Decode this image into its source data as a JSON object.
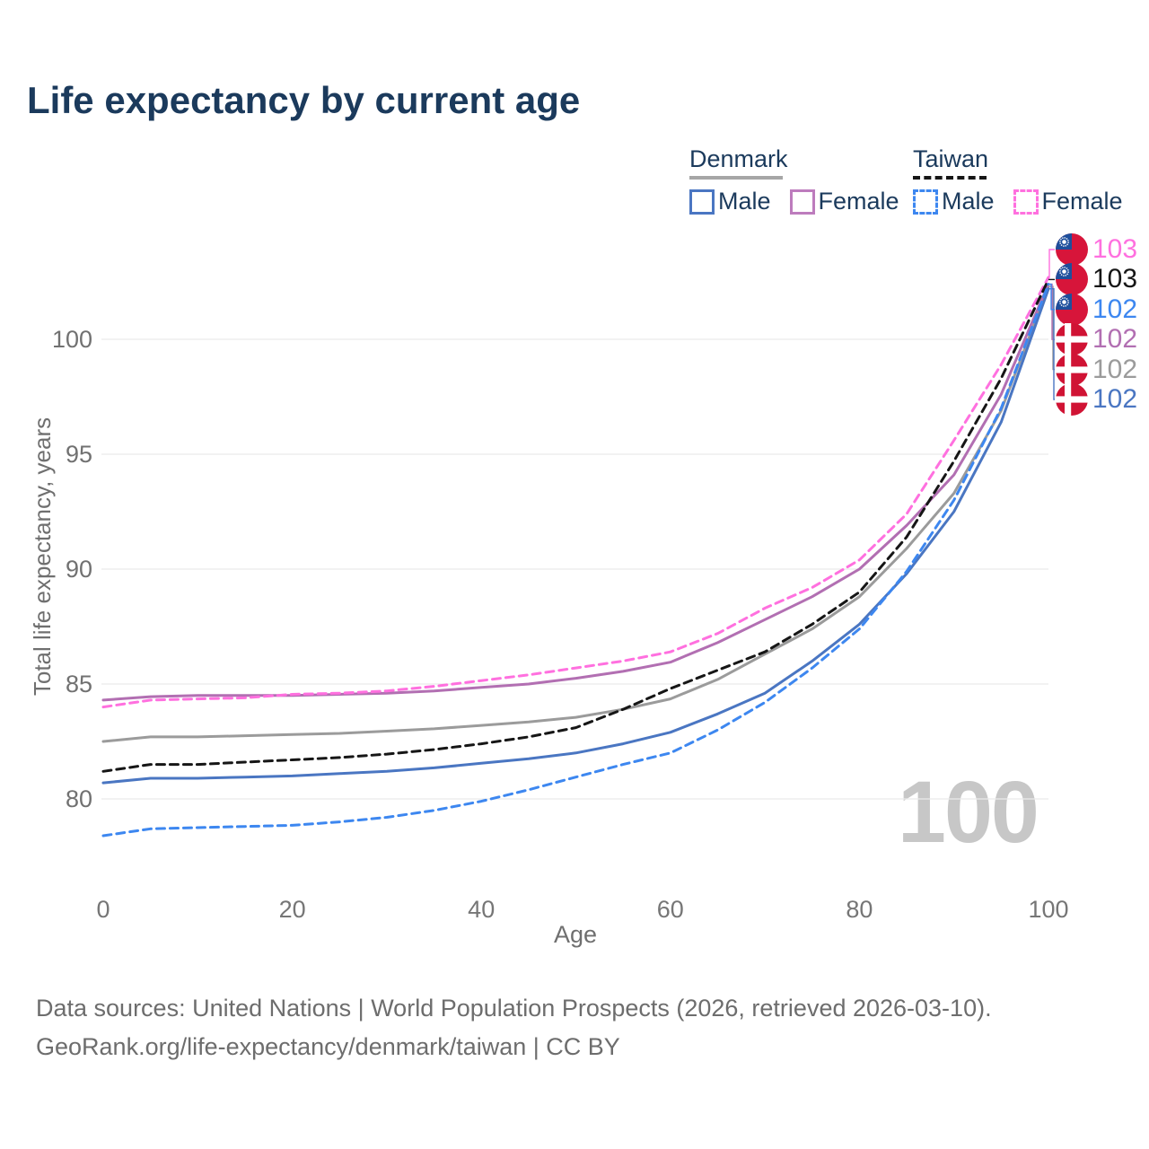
{
  "title": "Life expectancy by current age",
  "legend": {
    "groups": [
      {
        "label": "Denmark",
        "line_style": "solid",
        "underline_color": "#a6a6a6",
        "items": [
          {
            "label": "Male",
            "color": "#4a76c2",
            "dash": false
          },
          {
            "label": "Female",
            "color": "#bd7cbd",
            "dash": false
          }
        ]
      },
      {
        "label": "Taiwan",
        "line_style": "dashed",
        "underline_color": "#161616",
        "items": [
          {
            "label": "Male",
            "color": "#3d87f0",
            "dash": true
          },
          {
            "label": "Female",
            "color": "#ff70df",
            "dash": true
          }
        ]
      }
    ]
  },
  "watermark": "100",
  "footer": {
    "line1": "Data sources: United Nations | World Population Prospects (2026, retrieved 2026-03-10).",
    "line2": "GeoRank.org/life-expectancy/denmark/taiwan | CC BY"
  },
  "chart_data": {
    "type": "line",
    "title": "Life expectancy by current age",
    "xlabel": "Age",
    "ylabel": "Total life expectancy, years",
    "x_ticks": [
      0,
      20,
      40,
      60,
      80,
      100
    ],
    "y_ticks": [
      80,
      85,
      90,
      95,
      100
    ],
    "xlim": [
      0,
      100
    ],
    "ylim": [
      78,
      103.5
    ],
    "grid": true,
    "legend_position": "top-right",
    "x": [
      0,
      5,
      10,
      15,
      20,
      25,
      30,
      35,
      40,
      45,
      50,
      55,
      60,
      65,
      70,
      75,
      80,
      85,
      90,
      95,
      100
    ],
    "series": [
      {
        "name": "Denmark",
        "country": "Denmark",
        "color": "#9b9b9b",
        "dash": false,
        "label_row": 4,
        "end_label": "102",
        "values": [
          82.5,
          82.7,
          82.7,
          82.75,
          82.8,
          82.85,
          82.95,
          83.05,
          83.2,
          83.35,
          83.55,
          83.9,
          84.35,
          85.2,
          86.3,
          87.4,
          88.8,
          90.9,
          93.3,
          96.9,
          102.3
        ]
      },
      {
        "name": "Denmark Female",
        "country": "Denmark",
        "color": "#b26fb2",
        "dash": false,
        "label_row": 3,
        "end_label": "102",
        "values": [
          84.3,
          84.45,
          84.5,
          84.5,
          84.5,
          84.55,
          84.6,
          84.7,
          84.85,
          85.0,
          85.25,
          85.55,
          85.95,
          86.8,
          87.8,
          88.8,
          90.0,
          91.9,
          94.1,
          97.6,
          102.4
        ]
      },
      {
        "name": "Denmark Male",
        "country": "Denmark",
        "color": "#4a76c2",
        "dash": false,
        "label_row": 5,
        "end_label": "102",
        "values": [
          80.7,
          80.9,
          80.9,
          80.95,
          81.0,
          81.1,
          81.2,
          81.35,
          81.55,
          81.75,
          82.0,
          82.4,
          82.9,
          83.7,
          84.6,
          86.0,
          87.6,
          89.8,
          92.5,
          96.4,
          102.2
        ]
      },
      {
        "name": "Taiwan Female",
        "country": "Taiwan",
        "color": "#ff70df",
        "dash": true,
        "label_row": 0,
        "end_label": "103",
        "values": [
          84.0,
          84.3,
          84.35,
          84.4,
          84.55,
          84.6,
          84.7,
          84.9,
          85.15,
          85.4,
          85.7,
          86.0,
          86.4,
          87.2,
          88.3,
          89.2,
          90.4,
          92.4,
          95.6,
          98.9,
          102.7
        ]
      },
      {
        "name": "Taiwan",
        "country": "Taiwan",
        "color": "#161616",
        "dash": true,
        "label_row": 1,
        "end_label": "103",
        "values": [
          81.2,
          81.5,
          81.5,
          81.6,
          81.7,
          81.8,
          81.95,
          82.15,
          82.4,
          82.7,
          83.1,
          83.9,
          84.8,
          85.6,
          86.4,
          87.6,
          89.0,
          91.4,
          94.7,
          98.3,
          102.6
        ]
      },
      {
        "name": "Taiwan Male",
        "country": "Taiwan",
        "color": "#3d87f0",
        "dash": true,
        "label_row": 2,
        "end_label": "102",
        "values": [
          78.4,
          78.7,
          78.75,
          78.8,
          78.85,
          79.0,
          79.2,
          79.5,
          79.9,
          80.4,
          80.95,
          81.5,
          82.0,
          83.0,
          84.2,
          85.7,
          87.4,
          89.9,
          93.0,
          97.0,
          102.4
        ]
      }
    ]
  },
  "end_labels": [
    {
      "flag": "taiwan",
      "value": "103",
      "color": "#ff70df"
    },
    {
      "flag": "taiwan",
      "value": "103",
      "color": "#161616"
    },
    {
      "flag": "taiwan",
      "value": "102",
      "color": "#3d87f0"
    },
    {
      "flag": "denmark",
      "value": "102",
      "color": "#b26fb2"
    },
    {
      "flag": "denmark",
      "value": "102",
      "color": "#9b9b9b"
    },
    {
      "flag": "denmark",
      "value": "102",
      "color": "#4a76c2"
    }
  ]
}
